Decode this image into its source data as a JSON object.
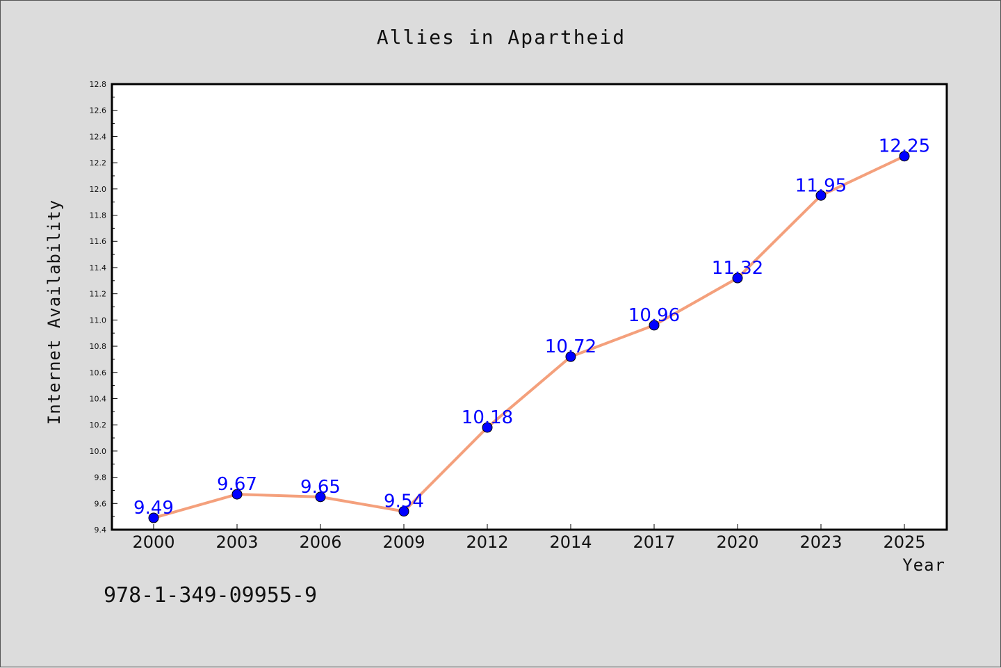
{
  "chart_data": {
    "type": "line",
    "title": "Allies in Apartheid",
    "xlabel": "Year",
    "ylabel": "Internet Availability",
    "categories": [
      "2000",
      "2003",
      "2006",
      "2009",
      "2012",
      "2014",
      "2017",
      "2020",
      "2023",
      "2025"
    ],
    "series": [
      {
        "values": [
          9.49,
          9.67,
          9.65,
          9.54,
          10.18,
          10.72,
          10.96,
          11.32,
          11.95,
          12.25
        ],
        "data_labels": [
          "9.49",
          "9.67",
          "9.65",
          "9.54",
          "10.18",
          "10.72",
          "10.96",
          "11.32",
          "11.95",
          "12.25"
        ],
        "line_color": "#f4a07c",
        "marker_color": "#0000ff"
      }
    ],
    "ylim": [
      9.4,
      12.8
    ],
    "y_ticks": [
      "9.4",
      "9.6",
      "9.8",
      "10.0",
      "10.2",
      "10.4",
      "10.6",
      "10.8",
      "11.0",
      "11.2",
      "11.4",
      "11.6",
      "11.8",
      "12.0",
      "12.2",
      "12.4",
      "12.6",
      "12.8"
    ],
    "grid": false,
    "legend": "none",
    "footnote": "978-1-349-09955-9"
  },
  "colors": {
    "background": "#dcdcdc",
    "plot_area": "#ffffff",
    "label_color": "#0000ff"
  }
}
